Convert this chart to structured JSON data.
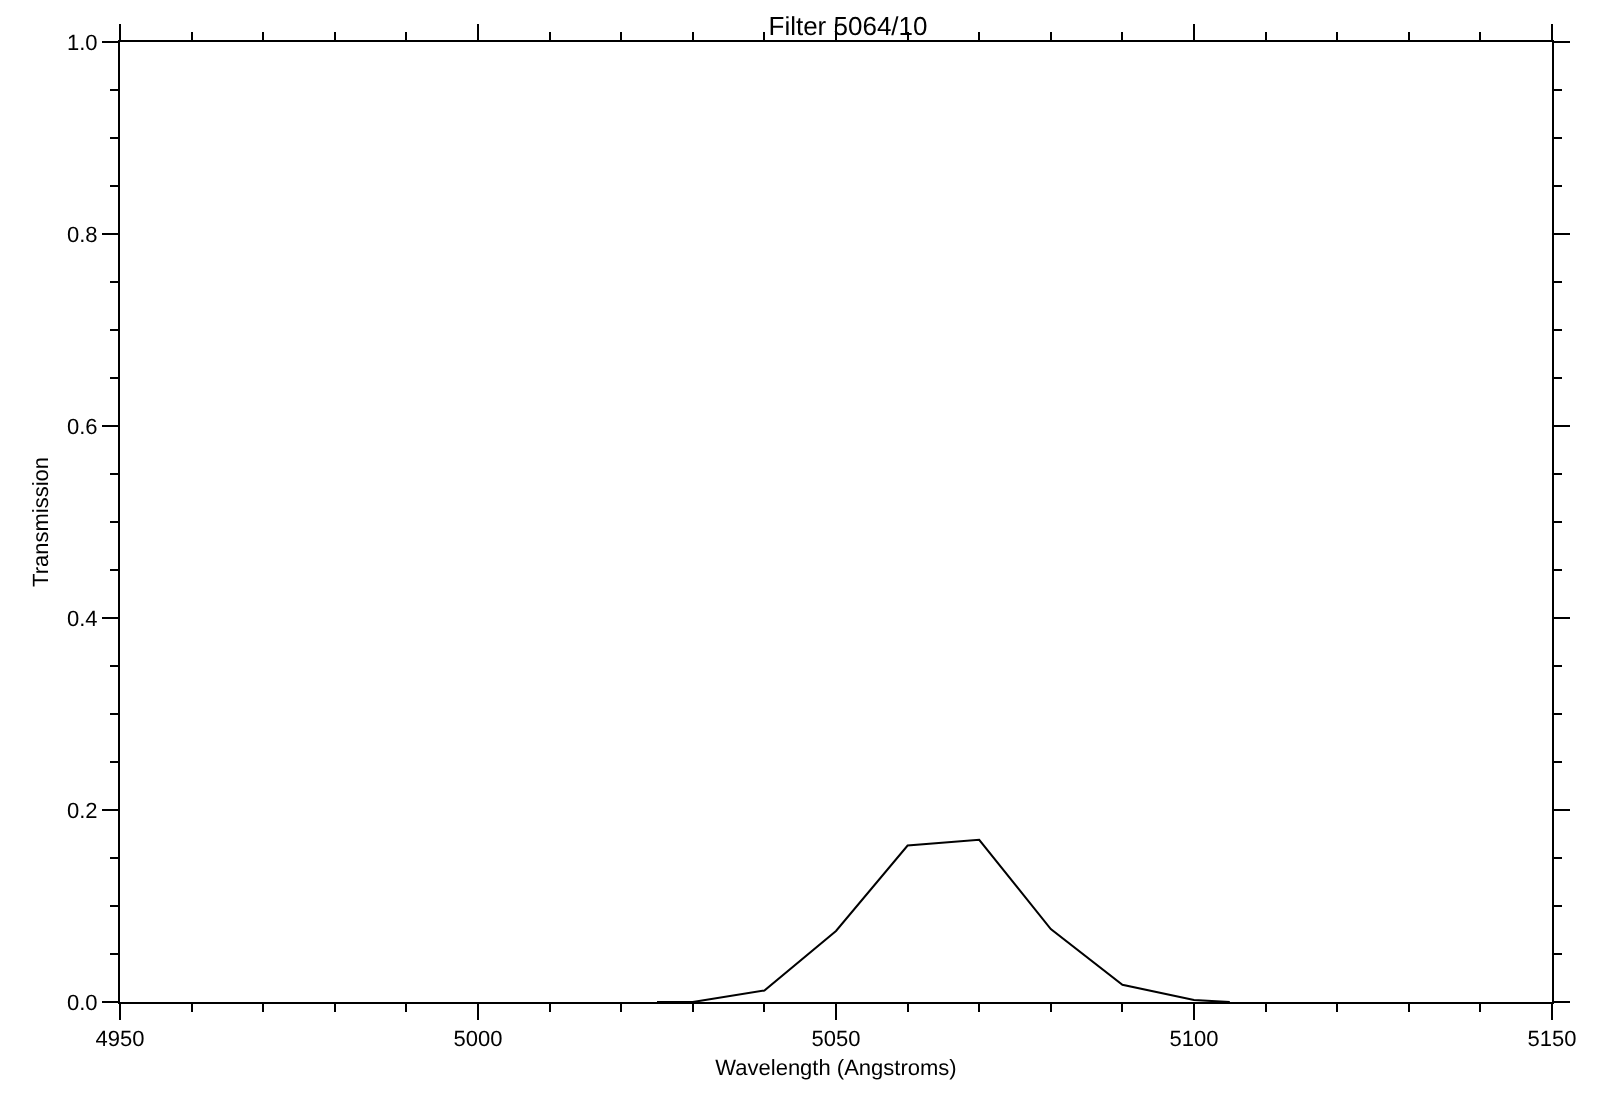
{
  "chart_data": {
    "type": "line",
    "title": "Filter 5064/10",
    "xlabel": "Wavelength (Angstroms)",
    "ylabel": "Transmission",
    "x": [
      5025,
      5030,
      5040,
      5050,
      5060,
      5070,
      5080,
      5090,
      5100,
      5105
    ],
    "series": [
      {
        "color": "#000000",
        "values": [
          0.0,
          0.0,
          0.012,
          0.074,
          0.163,
          0.169,
          0.076,
          0.018,
          0.002,
          0.0
        ]
      }
    ],
    "xlim": [
      4950,
      5150
    ],
    "xticks": [
      4950,
      5000,
      5050,
      5100,
      5150
    ],
    "ylim": [
      0.0,
      1.0
    ],
    "yticks": [
      {
        "value": 0.0,
        "label": "0.0"
      },
      {
        "value": 0.2,
        "label": "0.2"
      },
      {
        "value": 0.4,
        "label": "0.4"
      },
      {
        "value": 0.6,
        "label": "0.6"
      },
      {
        "value": 0.8,
        "label": "0.8"
      },
      {
        "value": 1.0,
        "label": "1.0"
      }
    ],
    "grid": false,
    "legend": false,
    "marker": "none",
    "line_style": "solid"
  }
}
